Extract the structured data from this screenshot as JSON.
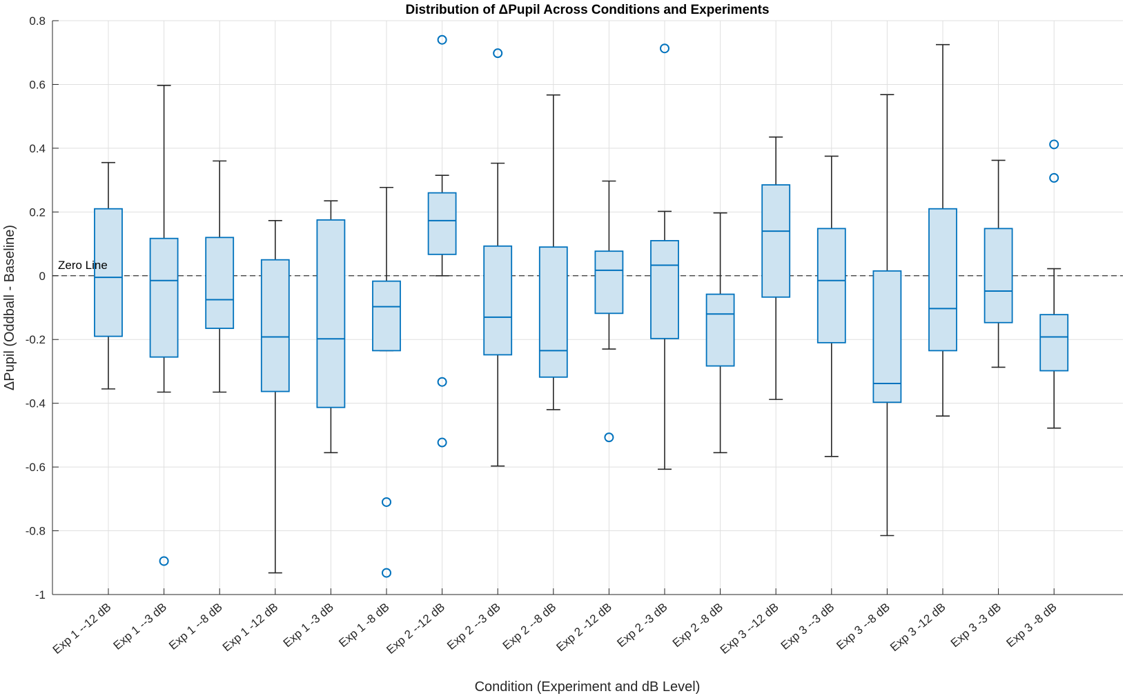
{
  "chart_data": {
    "type": "boxplot",
    "title": "Distribution of ΔPupil Across Conditions and Experiments",
    "xlabel": "Condition (Experiment and dB Level)",
    "ylabel": "ΔPupil (Oddball - Baseline)",
    "ylim": [
      -1,
      0.8
    ],
    "yticks": [
      -1,
      -0.8,
      -0.6,
      -0.4,
      -0.2,
      0,
      0.2,
      0.4,
      0.6,
      0.8
    ],
    "ytick_labels": [
      "-1",
      "-0.8",
      "-0.6",
      "-0.4",
      "-0.2",
      "0",
      "0.2",
      "0.4",
      "0.6",
      "0.8"
    ],
    "grid": true,
    "reference_line": {
      "y": 0,
      "label": "Zero Line",
      "style": "dashed"
    },
    "colors": {
      "box_edge": "#0072BD",
      "box_fill": "#CDE3F1",
      "whisker": "#262626",
      "outlier": "#0072BD",
      "grid": "#DFDFDF",
      "ref_line": "#333333"
    },
    "categories": [
      "Exp 1 --12 dB",
      "Exp 1 --3 dB",
      "Exp 1 --8 dB",
      "Exp 1 -12 dB",
      "Exp 1 -3 dB",
      "Exp 1 -8 dB",
      "Exp 2 --12 dB",
      "Exp 2 --3 dB",
      "Exp 2 --8 dB",
      "Exp 2 -12 dB",
      "Exp 2 -3 dB",
      "Exp 2 -8 dB",
      "Exp 3 --12 dB",
      "Exp 3 --3 dB",
      "Exp 3 --8 dB",
      "Exp 3 -12 dB",
      "Exp 3 -3 dB",
      "Exp 3 -8 dB"
    ],
    "boxes": [
      {
        "whisker_low": -0.355,
        "q1": -0.19,
        "median": -0.005,
        "q3": 0.21,
        "whisker_high": 0.355,
        "outliers": []
      },
      {
        "whisker_low": -0.365,
        "q1": -0.255,
        "median": -0.015,
        "q3": 0.117,
        "whisker_high": 0.597,
        "outliers": [
          -0.895
        ]
      },
      {
        "whisker_low": -0.365,
        "q1": -0.165,
        "median": -0.075,
        "q3": 0.12,
        "whisker_high": 0.36,
        "outliers": []
      },
      {
        "whisker_low": -0.932,
        "q1": -0.363,
        "median": -0.192,
        "q3": 0.05,
        "whisker_high": 0.173,
        "outliers": []
      },
      {
        "whisker_low": -0.555,
        "q1": -0.413,
        "median": -0.198,
        "q3": 0.175,
        "whisker_high": 0.235,
        "outliers": []
      },
      {
        "whisker_low": -0.235,
        "q1": -0.235,
        "median": -0.097,
        "q3": -0.017,
        "whisker_high": 0.277,
        "outliers": [
          -0.71,
          -0.932
        ]
      },
      {
        "whisker_low": 0.0,
        "q1": 0.067,
        "median": 0.173,
        "q3": 0.26,
        "whisker_high": 0.315,
        "outliers": [
          0.74,
          -0.333,
          -0.523
        ]
      },
      {
        "whisker_low": -0.597,
        "q1": -0.248,
        "median": -0.13,
        "q3": 0.093,
        "whisker_high": 0.353,
        "outliers": [
          0.698
        ]
      },
      {
        "whisker_low": -0.42,
        "q1": -0.318,
        "median": -0.235,
        "q3": 0.09,
        "whisker_high": 0.567,
        "outliers": []
      },
      {
        "whisker_low": -0.23,
        "q1": -0.118,
        "median": 0.017,
        "q3": 0.077,
        "whisker_high": 0.297,
        "outliers": [
          -0.507
        ]
      },
      {
        "whisker_low": -0.607,
        "q1": -0.197,
        "median": 0.033,
        "q3": 0.11,
        "whisker_high": 0.202,
        "outliers": [
          0.713
        ]
      },
      {
        "whisker_low": -0.555,
        "q1": -0.283,
        "median": -0.12,
        "q3": -0.058,
        "whisker_high": 0.197,
        "outliers": []
      },
      {
        "whisker_low": -0.388,
        "q1": -0.067,
        "median": 0.14,
        "q3": 0.285,
        "whisker_high": 0.435,
        "outliers": []
      },
      {
        "whisker_low": -0.567,
        "q1": -0.21,
        "median": -0.015,
        "q3": 0.148,
        "whisker_high": 0.375,
        "outliers": []
      },
      {
        "whisker_low": -0.815,
        "q1": -0.397,
        "median": -0.338,
        "q3": 0.015,
        "whisker_high": 0.568,
        "outliers": []
      },
      {
        "whisker_low": -0.44,
        "q1": -0.235,
        "median": -0.103,
        "q3": 0.21,
        "whisker_high": 0.725,
        "outliers": []
      },
      {
        "whisker_low": -0.287,
        "q1": -0.147,
        "median": -0.048,
        "q3": 0.148,
        "whisker_high": 0.362,
        "outliers": []
      },
      {
        "whisker_low": -0.478,
        "q1": -0.298,
        "median": -0.192,
        "q3": -0.122,
        "whisker_high": 0.022,
        "outliers": [
          0.412,
          0.307
        ]
      }
    ]
  }
}
